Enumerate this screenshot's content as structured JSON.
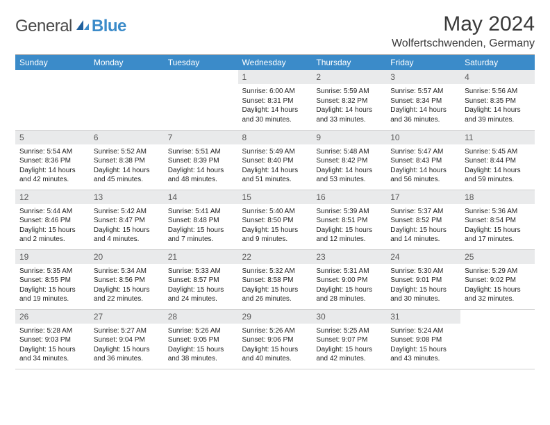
{
  "logo": {
    "word1": "General",
    "word2": "Blue"
  },
  "title": "May 2024",
  "location": "Wolfertschwenden, Germany",
  "colors": {
    "header_bg": "#3b8bc9",
    "header_text": "#ffffff",
    "daynum_bg": "#e9eaeb",
    "daynum_text": "#5a5a5a",
    "body_text": "#222222",
    "border": "#cfcfcf",
    "page_bg": "#ffffff"
  },
  "typography": {
    "title_fontsize": 30,
    "location_fontsize": 16,
    "header_fontsize": 12,
    "daynum_fontsize": 12,
    "cell_fontsize": 10
  },
  "weekdays": [
    "Sunday",
    "Monday",
    "Tuesday",
    "Wednesday",
    "Thursday",
    "Friday",
    "Saturday"
  ],
  "weeks": [
    [
      {
        "blank": true
      },
      {
        "blank": true
      },
      {
        "blank": true
      },
      {
        "day": "1",
        "sunrise": "Sunrise: 6:00 AM",
        "sunset": "Sunset: 8:31 PM",
        "daylight": "Daylight: 14 hours and 30 minutes."
      },
      {
        "day": "2",
        "sunrise": "Sunrise: 5:59 AM",
        "sunset": "Sunset: 8:32 PM",
        "daylight": "Daylight: 14 hours and 33 minutes."
      },
      {
        "day": "3",
        "sunrise": "Sunrise: 5:57 AM",
        "sunset": "Sunset: 8:34 PM",
        "daylight": "Daylight: 14 hours and 36 minutes."
      },
      {
        "day": "4",
        "sunrise": "Sunrise: 5:56 AM",
        "sunset": "Sunset: 8:35 PM",
        "daylight": "Daylight: 14 hours and 39 minutes."
      }
    ],
    [
      {
        "day": "5",
        "sunrise": "Sunrise: 5:54 AM",
        "sunset": "Sunset: 8:36 PM",
        "daylight": "Daylight: 14 hours and 42 minutes."
      },
      {
        "day": "6",
        "sunrise": "Sunrise: 5:52 AM",
        "sunset": "Sunset: 8:38 PM",
        "daylight": "Daylight: 14 hours and 45 minutes."
      },
      {
        "day": "7",
        "sunrise": "Sunrise: 5:51 AM",
        "sunset": "Sunset: 8:39 PM",
        "daylight": "Daylight: 14 hours and 48 minutes."
      },
      {
        "day": "8",
        "sunrise": "Sunrise: 5:49 AM",
        "sunset": "Sunset: 8:40 PM",
        "daylight": "Daylight: 14 hours and 51 minutes."
      },
      {
        "day": "9",
        "sunrise": "Sunrise: 5:48 AM",
        "sunset": "Sunset: 8:42 PM",
        "daylight": "Daylight: 14 hours and 53 minutes."
      },
      {
        "day": "10",
        "sunrise": "Sunrise: 5:47 AM",
        "sunset": "Sunset: 8:43 PM",
        "daylight": "Daylight: 14 hours and 56 minutes."
      },
      {
        "day": "11",
        "sunrise": "Sunrise: 5:45 AM",
        "sunset": "Sunset: 8:44 PM",
        "daylight": "Daylight: 14 hours and 59 minutes."
      }
    ],
    [
      {
        "day": "12",
        "sunrise": "Sunrise: 5:44 AM",
        "sunset": "Sunset: 8:46 PM",
        "daylight": "Daylight: 15 hours and 2 minutes."
      },
      {
        "day": "13",
        "sunrise": "Sunrise: 5:42 AM",
        "sunset": "Sunset: 8:47 PM",
        "daylight": "Daylight: 15 hours and 4 minutes."
      },
      {
        "day": "14",
        "sunrise": "Sunrise: 5:41 AM",
        "sunset": "Sunset: 8:48 PM",
        "daylight": "Daylight: 15 hours and 7 minutes."
      },
      {
        "day": "15",
        "sunrise": "Sunrise: 5:40 AM",
        "sunset": "Sunset: 8:50 PM",
        "daylight": "Daylight: 15 hours and 9 minutes."
      },
      {
        "day": "16",
        "sunrise": "Sunrise: 5:39 AM",
        "sunset": "Sunset: 8:51 PM",
        "daylight": "Daylight: 15 hours and 12 minutes."
      },
      {
        "day": "17",
        "sunrise": "Sunrise: 5:37 AM",
        "sunset": "Sunset: 8:52 PM",
        "daylight": "Daylight: 15 hours and 14 minutes."
      },
      {
        "day": "18",
        "sunrise": "Sunrise: 5:36 AM",
        "sunset": "Sunset: 8:54 PM",
        "daylight": "Daylight: 15 hours and 17 minutes."
      }
    ],
    [
      {
        "day": "19",
        "sunrise": "Sunrise: 5:35 AM",
        "sunset": "Sunset: 8:55 PM",
        "daylight": "Daylight: 15 hours and 19 minutes."
      },
      {
        "day": "20",
        "sunrise": "Sunrise: 5:34 AM",
        "sunset": "Sunset: 8:56 PM",
        "daylight": "Daylight: 15 hours and 22 minutes."
      },
      {
        "day": "21",
        "sunrise": "Sunrise: 5:33 AM",
        "sunset": "Sunset: 8:57 PM",
        "daylight": "Daylight: 15 hours and 24 minutes."
      },
      {
        "day": "22",
        "sunrise": "Sunrise: 5:32 AM",
        "sunset": "Sunset: 8:58 PM",
        "daylight": "Daylight: 15 hours and 26 minutes."
      },
      {
        "day": "23",
        "sunrise": "Sunrise: 5:31 AM",
        "sunset": "Sunset: 9:00 PM",
        "daylight": "Daylight: 15 hours and 28 minutes."
      },
      {
        "day": "24",
        "sunrise": "Sunrise: 5:30 AM",
        "sunset": "Sunset: 9:01 PM",
        "daylight": "Daylight: 15 hours and 30 minutes."
      },
      {
        "day": "25",
        "sunrise": "Sunrise: 5:29 AM",
        "sunset": "Sunset: 9:02 PM",
        "daylight": "Daylight: 15 hours and 32 minutes."
      }
    ],
    [
      {
        "day": "26",
        "sunrise": "Sunrise: 5:28 AM",
        "sunset": "Sunset: 9:03 PM",
        "daylight": "Daylight: 15 hours and 34 minutes."
      },
      {
        "day": "27",
        "sunrise": "Sunrise: 5:27 AM",
        "sunset": "Sunset: 9:04 PM",
        "daylight": "Daylight: 15 hours and 36 minutes."
      },
      {
        "day": "28",
        "sunrise": "Sunrise: 5:26 AM",
        "sunset": "Sunset: 9:05 PM",
        "daylight": "Daylight: 15 hours and 38 minutes."
      },
      {
        "day": "29",
        "sunrise": "Sunrise: 5:26 AM",
        "sunset": "Sunset: 9:06 PM",
        "daylight": "Daylight: 15 hours and 40 minutes."
      },
      {
        "day": "30",
        "sunrise": "Sunrise: 5:25 AM",
        "sunset": "Sunset: 9:07 PM",
        "daylight": "Daylight: 15 hours and 42 minutes."
      },
      {
        "day": "31",
        "sunrise": "Sunrise: 5:24 AM",
        "sunset": "Sunset: 9:08 PM",
        "daylight": "Daylight: 15 hours and 43 minutes."
      },
      {
        "blank": true
      }
    ]
  ]
}
